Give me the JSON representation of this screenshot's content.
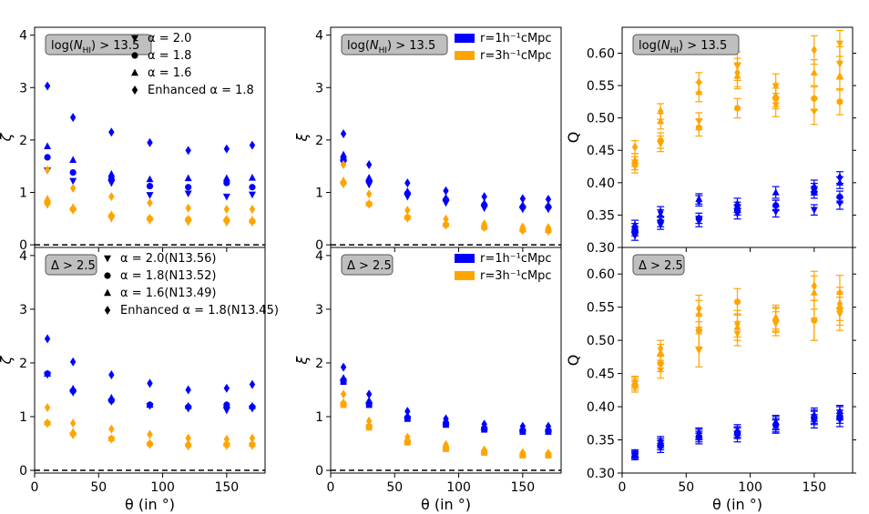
{
  "colors": {
    "blue": "#0000ff",
    "orange": "#ffa500"
  },
  "chart_data": [
    {
      "panel": "top-left",
      "type": "scatter",
      "annotation": "log(N_HI) > 13.5",
      "ylabel": "ζ",
      "xlabel": "",
      "xlim": [
        0,
        180
      ],
      "ylim": [
        -0.05,
        4.15
      ],
      "xticks": [
        0,
        50,
        100,
        150
      ],
      "yticks": [
        0,
        1,
        2,
        3,
        4
      ],
      "xticklabels_shown": false,
      "zero_line": true,
      "legend_position": "top-right",
      "legend": [
        {
          "marker": "triangle-down",
          "label": "α = 2.0"
        },
        {
          "marker": "circle",
          "label": "α = 1.8"
        },
        {
          "marker": "triangle-up",
          "label": "α = 1.6"
        },
        {
          "marker": "diamond",
          "label": "Enhanced α = 1.8"
        }
      ],
      "x": [
        10,
        30,
        60,
        90,
        120,
        150,
        170
      ],
      "series": [
        {
          "color": "blue",
          "marker": "triangle-down",
          "y": [
            1.42,
            1.22,
            1.18,
            0.95,
            0.98,
            0.92,
            0.96
          ]
        },
        {
          "color": "blue",
          "marker": "circle",
          "y": [
            1.67,
            1.38,
            1.25,
            1.12,
            1.1,
            1.18,
            1.1
          ]
        },
        {
          "color": "blue",
          "marker": "triangle-up",
          "y": [
            1.88,
            1.62,
            1.35,
            1.25,
            1.27,
            1.27,
            1.28
          ]
        },
        {
          "color": "blue",
          "marker": "diamond",
          "y": [
            3.03,
            2.43,
            2.15,
            1.95,
            1.8,
            1.83,
            1.9
          ]
        },
        {
          "color": "orange",
          "marker": "triangle-down",
          "y": [
            0.76,
            0.65,
            0.5,
            0.46,
            0.43,
            0.42,
            0.42
          ]
        },
        {
          "color": "orange",
          "marker": "circle",
          "y": [
            0.8,
            0.68,
            0.55,
            0.5,
            0.48,
            0.47,
            0.45
          ]
        },
        {
          "color": "orange",
          "marker": "triangle-up",
          "y": [
            0.88,
            0.72,
            0.58,
            0.52,
            0.5,
            0.5,
            0.48
          ]
        },
        {
          "color": "orange",
          "marker": "diamond",
          "y": [
            1.43,
            1.08,
            0.92,
            0.8,
            0.7,
            0.68,
            0.68
          ]
        }
      ]
    },
    {
      "panel": "top-middle",
      "type": "scatter",
      "annotation": "log(N_HI) > 13.5",
      "ylabel": "ξ",
      "xlabel": "",
      "xlim": [
        0,
        180
      ],
      "ylim": [
        -0.05,
        4.15
      ],
      "xticks": [
        0,
        50,
        100,
        150
      ],
      "yticks": [
        0,
        1,
        2,
        3,
        4
      ],
      "xticklabels_shown": false,
      "zero_line": true,
      "legend_position": "top-right",
      "legend": [
        {
          "color": "blue",
          "label": "r=1h⁻¹cMpc"
        },
        {
          "color": "orange",
          "label": "r=3h⁻¹cMpc"
        }
      ],
      "x": [
        10,
        30,
        60,
        90,
        120,
        150,
        170
      ],
      "series": [
        {
          "color": "blue",
          "marker": "triangle-down",
          "y": [
            1.56,
            1.15,
            0.92,
            0.8,
            0.7,
            0.68,
            0.68
          ]
        },
        {
          "color": "blue",
          "marker": "circle",
          "y": [
            1.62,
            1.22,
            0.98,
            0.86,
            0.76,
            0.72,
            0.72
          ]
        },
        {
          "color": "blue",
          "marker": "triangle-up",
          "y": [
            1.72,
            1.28,
            1.02,
            0.9,
            0.8,
            0.76,
            0.76
          ]
        },
        {
          "color": "blue",
          "marker": "diamond",
          "y": [
            2.12,
            1.53,
            1.18,
            1.03,
            0.92,
            0.88,
            0.87
          ]
        },
        {
          "color": "orange",
          "marker": "triangle-down",
          "y": [
            1.15,
            0.76,
            0.5,
            0.36,
            0.32,
            0.26,
            0.25
          ]
        },
        {
          "color": "orange",
          "marker": "circle",
          "y": [
            1.18,
            0.78,
            0.52,
            0.38,
            0.33,
            0.28,
            0.27
          ]
        },
        {
          "color": "orange",
          "marker": "triangle-up",
          "y": [
            1.23,
            0.8,
            0.54,
            0.4,
            0.35,
            0.3,
            0.29
          ]
        },
        {
          "color": "orange",
          "marker": "diamond",
          "y": [
            1.53,
            0.97,
            0.66,
            0.49,
            0.4,
            0.34,
            0.33
          ]
        }
      ]
    },
    {
      "panel": "top-right",
      "type": "scatter",
      "annotation": "log(N_HI) > 13.5",
      "ylabel": "Q",
      "xlabel": "",
      "xlim": [
        0,
        180
      ],
      "ylim": [
        0.3,
        0.64
      ],
      "xticks": [
        0,
        50,
        100,
        150
      ],
      "yticks": [
        0.3,
        0.35,
        0.4,
        0.45,
        0.5,
        0.55,
        0.6
      ],
      "xticklabels_shown": false,
      "zero_line": false,
      "x": [
        10,
        30,
        60,
        90,
        120,
        150,
        170
      ],
      "series": [
        {
          "color": "blue",
          "marker": "triangle-down",
          "y": [
            0.318,
            0.335,
            0.34,
            0.352,
            0.355,
            0.358,
            0.368
          ],
          "err": [
            0.007,
            0.007,
            0.008,
            0.008,
            0.008,
            0.008,
            0.009
          ]
        },
        {
          "color": "blue",
          "marker": "circle",
          "y": [
            0.325,
            0.34,
            0.345,
            0.358,
            0.365,
            0.385,
            0.378
          ],
          "err": [
            0.007,
            0.008,
            0.008,
            0.008,
            0.008,
            0.009,
            0.009
          ]
        },
        {
          "color": "blue",
          "marker": "triangle-up",
          "y": [
            0.335,
            0.35,
            0.375,
            0.368,
            0.385,
            0.395,
            0.4
          ],
          "err": [
            0.007,
            0.008,
            0.008,
            0.008,
            0.009,
            0.009,
            0.009
          ]
        },
        {
          "color": "blue",
          "marker": "diamond",
          "y": [
            0.33,
            0.355,
            0.372,
            0.362,
            0.365,
            0.39,
            0.408
          ],
          "err": [
            0.007,
            0.008,
            0.008,
            0.008,
            0.008,
            0.009,
            0.009
          ]
        },
        {
          "color": "orange",
          "marker": "triangle-down",
          "y": [
            0.425,
            0.46,
            0.495,
            0.58,
            0.52,
            0.51,
            0.615
          ],
          "err": [
            0.01,
            0.012,
            0.013,
            0.022,
            0.018,
            0.02,
            0.02
          ]
        },
        {
          "color": "orange",
          "marker": "circle",
          "y": [
            0.43,
            0.465,
            0.485,
            0.515,
            0.53,
            0.53,
            0.525
          ],
          "err": [
            0.01,
            0.012,
            0.013,
            0.015,
            0.016,
            0.018,
            0.02
          ]
        },
        {
          "color": "orange",
          "marker": "triangle-up",
          "y": [
            0.435,
            0.495,
            0.54,
            0.565,
            0.535,
            0.57,
            0.565
          ],
          "err": [
            0.01,
            0.012,
            0.015,
            0.02,
            0.018,
            0.02,
            0.022
          ]
        },
        {
          "color": "orange",
          "marker": "diamond",
          "y": [
            0.455,
            0.51,
            0.555,
            0.57,
            0.55,
            0.605,
            0.585
          ],
          "err": [
            0.01,
            0.012,
            0.015,
            0.022,
            0.018,
            0.022,
            0.025
          ]
        }
      ]
    },
    {
      "panel": "bottom-left",
      "type": "scatter",
      "annotation": "Δ > 2.5",
      "ylabel": "ζ",
      "xlabel": "θ (in °)",
      "xlim": [
        0,
        180
      ],
      "ylim": [
        -0.05,
        4.15
      ],
      "xticks": [
        0,
        50,
        100,
        150
      ],
      "yticks": [
        0,
        1,
        2,
        3,
        4
      ],
      "xticklabels_shown": true,
      "zero_line": true,
      "legend_position": "top-right",
      "legend": [
        {
          "marker": "triangle-down",
          "label": "α = 2.0(N13.56)"
        },
        {
          "marker": "circle",
          "label": "α = 1.8(N13.52)"
        },
        {
          "marker": "triangle-up",
          "label": "α = 1.6(N13.49)"
        },
        {
          "marker": "diamond",
          "label": "Enhanced α = 1.8(N13.45)"
        }
      ],
      "x": [
        10,
        30,
        60,
        90,
        120,
        150,
        170
      ],
      "series": [
        {
          "color": "blue",
          "marker": "triangle-down",
          "y": [
            1.78,
            1.45,
            1.28,
            1.2,
            1.15,
            1.12,
            1.15
          ]
        },
        {
          "color": "blue",
          "marker": "circle",
          "y": [
            1.8,
            1.48,
            1.3,
            1.22,
            1.18,
            1.22,
            1.18
          ]
        },
        {
          "color": "blue",
          "marker": "triangle-up",
          "y": [
            1.8,
            1.52,
            1.35,
            1.22,
            1.2,
            1.22,
            1.2
          ]
        },
        {
          "color": "blue",
          "marker": "diamond",
          "y": [
            2.45,
            2.02,
            1.78,
            1.62,
            1.5,
            1.53,
            1.6
          ]
        },
        {
          "color": "orange",
          "marker": "triangle-down",
          "y": [
            0.86,
            0.65,
            0.57,
            0.47,
            0.44,
            0.45,
            0.45
          ]
        },
        {
          "color": "orange",
          "marker": "circle",
          "y": [
            0.88,
            0.68,
            0.59,
            0.49,
            0.47,
            0.48,
            0.48
          ]
        },
        {
          "color": "orange",
          "marker": "triangle-up",
          "y": [
            0.9,
            0.72,
            0.6,
            0.52,
            0.5,
            0.5,
            0.5
          ]
        },
        {
          "color": "orange",
          "marker": "diamond",
          "y": [
            1.17,
            0.88,
            0.77,
            0.67,
            0.6,
            0.58,
            0.6
          ]
        }
      ]
    },
    {
      "panel": "bottom-middle",
      "type": "scatter",
      "annotation": "Δ > 2.5",
      "ylabel": "ξ",
      "xlabel": "θ (in °)",
      "xlim": [
        0,
        180
      ],
      "ylim": [
        -0.05,
        4.15
      ],
      "xticks": [
        0,
        50,
        100,
        150
      ],
      "yticks": [
        0,
        1,
        2,
        3,
        4
      ],
      "xticklabels_shown": true,
      "zero_line": true,
      "legend_position": "top-right",
      "legend": [
        {
          "color": "blue",
          "label": "r=1h⁻¹cMpc"
        },
        {
          "color": "orange",
          "label": "r=3h⁻¹cMpc"
        }
      ],
      "x": [
        10,
        30,
        60,
        90,
        120,
        150,
        170
      ],
      "series": [
        {
          "color": "blue",
          "marker": "square",
          "y": [
            1.65,
            1.22,
            0.96,
            0.85,
            0.76,
            0.72,
            0.72
          ]
        },
        {
          "color": "blue",
          "marker": "circle",
          "y": [
            1.68,
            1.25,
            0.98,
            0.88,
            0.78,
            0.74,
            0.74
          ]
        },
        {
          "color": "blue",
          "marker": "triangle-up",
          "y": [
            1.72,
            1.3,
            1.02,
            0.9,
            0.8,
            0.78,
            0.78
          ]
        },
        {
          "color": "blue",
          "marker": "diamond",
          "y": [
            1.92,
            1.42,
            1.1,
            0.96,
            0.86,
            0.82,
            0.82
          ]
        },
        {
          "color": "orange",
          "marker": "square",
          "y": [
            1.22,
            0.8,
            0.52,
            0.4,
            0.33,
            0.28,
            0.28
          ]
        },
        {
          "color": "orange",
          "marker": "circle",
          "y": [
            1.24,
            0.82,
            0.54,
            0.42,
            0.34,
            0.29,
            0.29
          ]
        },
        {
          "color": "orange",
          "marker": "triangle-up",
          "y": [
            1.27,
            0.85,
            0.56,
            0.44,
            0.36,
            0.31,
            0.3
          ]
        },
        {
          "color": "orange",
          "marker": "diamond",
          "y": [
            1.42,
            0.92,
            0.62,
            0.48,
            0.38,
            0.33,
            0.32
          ]
        }
      ]
    },
    {
      "panel": "bottom-right",
      "type": "scatter",
      "annotation": "Δ > 2.5",
      "ylabel": "Q",
      "xlabel": "θ (in °)",
      "xlim": [
        0,
        180
      ],
      "ylim": [
        0.3,
        0.64
      ],
      "xticks": [
        0,
        50,
        100,
        150
      ],
      "yticks": [
        0.3,
        0.35,
        0.4,
        0.45,
        0.5,
        0.55,
        0.6
      ],
      "xticklabels_shown": true,
      "zero_line": false,
      "x": [
        10,
        30,
        60,
        90,
        120,
        150,
        170
      ],
      "series": [
        {
          "color": "blue",
          "marker": "triangle-down",
          "y": [
            0.325,
            0.338,
            0.352,
            0.355,
            0.37,
            0.378,
            0.38
          ],
          "err": [
            0.005,
            0.007,
            0.008,
            0.008,
            0.01,
            0.01,
            0.01
          ]
        },
        {
          "color": "blue",
          "marker": "circle",
          "y": [
            0.327,
            0.342,
            0.355,
            0.36,
            0.372,
            0.383,
            0.385
          ],
          "err": [
            0.005,
            0.007,
            0.008,
            0.008,
            0.01,
            0.01,
            0.01
          ]
        },
        {
          "color": "blue",
          "marker": "triangle-up",
          "y": [
            0.328,
            0.345,
            0.358,
            0.365,
            0.377,
            0.388,
            0.39
          ],
          "err": [
            0.005,
            0.007,
            0.008,
            0.008,
            0.01,
            0.01,
            0.01
          ]
        },
        {
          "color": "blue",
          "marker": "diamond",
          "y": [
            0.33,
            0.348,
            0.36,
            0.362,
            0.375,
            0.385,
            0.392
          ],
          "err": [
            0.005,
            0.007,
            0.008,
            0.008,
            0.01,
            0.01,
            0.01
          ]
        },
        {
          "color": "orange",
          "marker": "triangle-down",
          "y": [
            0.43,
            0.455,
            0.485,
            0.51,
            0.525,
            0.53,
            0.54
          ],
          "err": [
            0.008,
            0.012,
            0.025,
            0.018,
            0.018,
            0.03,
            0.025
          ]
        },
        {
          "color": "orange",
          "marker": "circle",
          "y": [
            0.433,
            0.465,
            0.515,
            0.558,
            0.53,
            0.53,
            0.548
          ],
          "err": [
            0.008,
            0.012,
            0.025,
            0.02,
            0.018,
            0.03,
            0.025
          ]
        },
        {
          "color": "orange",
          "marker": "triangle-up",
          "y": [
            0.436,
            0.482,
            0.54,
            0.52,
            0.535,
            0.572,
            0.573
          ],
          "err": [
            0.008,
            0.012,
            0.02,
            0.02,
            0.018,
            0.025,
            0.025
          ]
        },
        {
          "color": "orange",
          "marker": "diamond",
          "y": [
            0.438,
            0.488,
            0.548,
            0.525,
            0.532,
            0.582,
            0.555
          ],
          "err": [
            0.008,
            0.012,
            0.02,
            0.02,
            0.018,
            0.022,
            0.025
          ]
        }
      ]
    }
  ]
}
